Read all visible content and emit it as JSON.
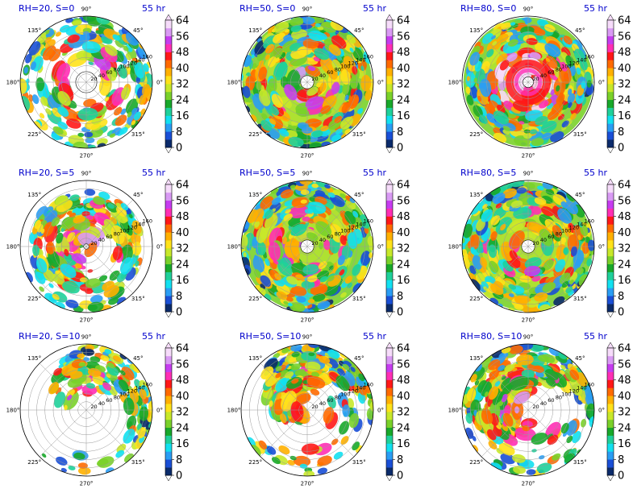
{
  "figure": {
    "time_label": "55 hr",
    "azimuth_labels": [
      "90°",
      "45°",
      "0°",
      "315°",
      "270°",
      "225°",
      "180°",
      "135°"
    ],
    "radius_labels": [
      "20",
      "40",
      "60",
      "80",
      "100",
      "120",
      "140",
      "160"
    ],
    "colorbar_ticks": [
      "0",
      "8",
      "16",
      "24",
      "32",
      "40",
      "48",
      "56",
      "64"
    ]
  },
  "chart_data": [
    {
      "type": "heatmap",
      "title": "RH=20, S=0",
      "annotation": "55 hr",
      "coverage": "full-disk-sparse"
    },
    {
      "type": "heatmap",
      "title": "RH=50, S=0",
      "annotation": "55 hr",
      "coverage": "full-disk"
    },
    {
      "type": "heatmap",
      "title": "RH=80, S=0",
      "annotation": "55 hr",
      "coverage": "full-disk-strong-core"
    },
    {
      "type": "heatmap",
      "title": "RH=20, S=5",
      "annotation": "55 hr",
      "coverage": "partial"
    },
    {
      "type": "heatmap",
      "title": "RH=50, S=5",
      "annotation": "55 hr",
      "coverage": "full-disk"
    },
    {
      "type": "heatmap",
      "title": "RH=80, S=5",
      "annotation": "55 hr",
      "coverage": "full-disk"
    },
    {
      "type": "heatmap",
      "title": "RH=20, S=10",
      "annotation": "55 hr",
      "coverage": "northeast-sparse"
    },
    {
      "type": "heatmap",
      "title": "RH=50, S=10",
      "annotation": "55 hr",
      "coverage": "northeast-quadrant"
    },
    {
      "type": "heatmap",
      "title": "RH=80, S=10",
      "annotation": "55 hr",
      "coverage": "north-half"
    }
  ],
  "colors": {
    "colormap": [
      "#0b2b6b",
      "#1a4fd6",
      "#2a9df4",
      "#12e0f0",
      "#1fd09a",
      "#18a82a",
      "#7ad12a",
      "#c8e82a",
      "#ffe21a",
      "#ffb000",
      "#ff6a00",
      "#ff1818",
      "#ff2fb4",
      "#c63cf0",
      "#d99af4",
      "#f6dcfa"
    ],
    "title": "#0000cc",
    "grid": "#9a9a9a"
  }
}
